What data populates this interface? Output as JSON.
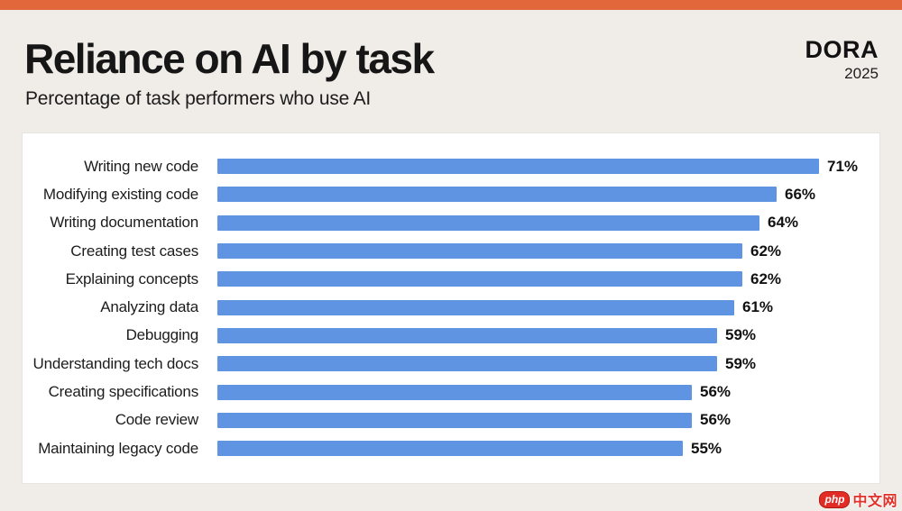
{
  "header": {
    "title": "Reliance on AI by task",
    "subtitle": "Percentage of task performers who use AI",
    "logo": "DORA",
    "year": "2025"
  },
  "chart_data": {
    "type": "bar",
    "orientation": "horizontal",
    "title": "Reliance on AI by task",
    "subtitle": "Percentage of task performers who use AI",
    "categories": [
      "Writing new code",
      "Modifying existing code",
      "Writing documentation",
      "Creating test cases",
      "Explaining concepts",
      "Analyzing data",
      "Debugging",
      "Understanding tech docs",
      "Creating specifications",
      "Code review",
      "Maintaining legacy code"
    ],
    "values": [
      71,
      66,
      64,
      62,
      62,
      61,
      59,
      59,
      56,
      56,
      55
    ],
    "value_suffix": "%",
    "xlim": [
      0,
      75
    ],
    "grid": false,
    "legend": false,
    "bar_color": "#5e94e2",
    "value_label_position": "end-of-bar"
  },
  "colors": {
    "accent_orange": "#e2673b",
    "bar_blue": "#5e94e2",
    "background": "#f0ede8",
    "card": "#ffffff",
    "text": "#1c1c1c"
  },
  "watermark": {
    "badge": "php",
    "text": "中文网"
  }
}
